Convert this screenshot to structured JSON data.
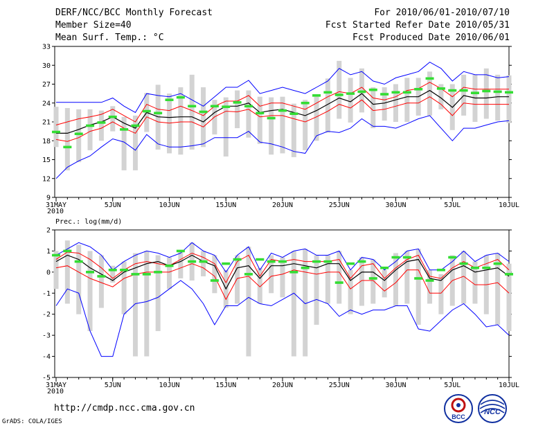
{
  "header": {
    "title": "DERF/NCC/BCC Monthly Forecast",
    "member_size": "Member Size=40",
    "variable1": "Mean Surf. Temp.: °C",
    "period": "For 2010/06/01-2010/07/10",
    "fcst_started": "Fcst Started Refer Date 2010/05/31",
    "fcst_produced": "Fcst Produced Date 2010/06/01"
  },
  "footer": {
    "url": "http://cmdp.ncc.cma.gov.cn",
    "grads": "GrADS: COLA/IGES",
    "logo1_text": "BCC",
    "logo2_text": "NCC"
  },
  "colors": {
    "max_min": "#0000ff",
    "std_band": "#ff0000",
    "mean": "#000000",
    "observed": "#33dd33",
    "spread_bar": "#d3d3d3"
  },
  "chart_data": [
    {
      "type": "line",
      "title": "Mean Surf. Temp.: °C",
      "ylabel": "°C",
      "ylim": [
        9,
        33
      ],
      "yticks": [
        9,
        12,
        15,
        18,
        21,
        24,
        27,
        30,
        33
      ],
      "x": [
        0,
        1,
        2,
        3,
        4,
        5,
        6,
        7,
        8,
        9,
        10,
        11,
        12,
        13,
        14,
        15,
        16,
        17,
        18,
        19,
        20,
        21,
        22,
        23,
        24,
        25,
        26,
        27,
        28,
        29,
        30,
        31,
        32,
        33,
        34,
        35,
        36,
        37,
        38,
        39,
        40
      ],
      "xticks": [
        {
          "day": 0,
          "label": "31MAY",
          "sub": "2010"
        },
        {
          "day": 5,
          "label": "5JUN"
        },
        {
          "day": 10,
          "label": "10JUN"
        },
        {
          "day": 15,
          "label": "15JUN"
        },
        {
          "day": 20,
          "label": "20JUN"
        },
        {
          "day": 25,
          "label": "25JUN"
        },
        {
          "day": 30,
          "label": "30JUN"
        },
        {
          "day": 35,
          "label": "5JUL"
        },
        {
          "day": 40,
          "label": "10JUL"
        }
      ],
      "series": [
        {
          "name": "max",
          "color": "#0000ff",
          "values": [
            24.1,
            24.1,
            24.1,
            24.1,
            24.1,
            24.8,
            23.5,
            22.5,
            25.5,
            25.2,
            25.0,
            25.5,
            24.5,
            23.5,
            25.0,
            26.5,
            26.5,
            27.6,
            25.5,
            26.0,
            26.5,
            26.0,
            25.5,
            26.5,
            27.5,
            29.5,
            28.5,
            29.0,
            27.5,
            27.0,
            28.0,
            28.5,
            29.0,
            30.5,
            29.5,
            27.5,
            29.0,
            28.5,
            28.5,
            28.0,
            28.2
          ]
        },
        {
          "name": "upper_std",
          "color": "#ff0000",
          "values": [
            20.5,
            21.0,
            21.5,
            21.8,
            22.2,
            23.0,
            22.0,
            21.0,
            23.8,
            23.0,
            22.8,
            23.5,
            22.8,
            22.0,
            23.5,
            24.3,
            24.3,
            25.2,
            23.5,
            24.0,
            24.0,
            23.5,
            23.0,
            24.0,
            25.0,
            25.8,
            25.5,
            26.5,
            24.8,
            24.5,
            25.0,
            26.0,
            26.3,
            27.3,
            26.3,
            25.0,
            26.5,
            26.2,
            26.2,
            26.2,
            26.2
          ]
        },
        {
          "name": "mean",
          "color": "#000000",
          "values": [
            19.2,
            19.2,
            19.8,
            20.5,
            21.0,
            21.8,
            20.8,
            20.0,
            22.5,
            21.8,
            21.7,
            21.8,
            21.8,
            21.0,
            22.5,
            23.5,
            23.5,
            24.0,
            22.5,
            22.8,
            23.0,
            22.5,
            22.0,
            22.8,
            23.8,
            24.8,
            24.2,
            25.5,
            23.8,
            24.0,
            24.5,
            25.0,
            25.0,
            26.0,
            24.8,
            23.3,
            25.2,
            24.8,
            24.8,
            25.0,
            25.0
          ]
        },
        {
          "name": "lower_std",
          "color": "#ff0000",
          "values": [
            18.2,
            17.9,
            18.5,
            19.5,
            20.0,
            21.0,
            20.0,
            19.2,
            21.8,
            21.0,
            20.8,
            21.0,
            21.0,
            20.2,
            21.8,
            22.7,
            22.6,
            23.0,
            21.8,
            22.0,
            22.0,
            21.5,
            21.0,
            21.8,
            22.7,
            23.8,
            23.2,
            24.5,
            22.8,
            23.0,
            23.5,
            24.0,
            24.0,
            25.0,
            23.8,
            22.0,
            24.0,
            23.8,
            23.8,
            23.8,
            23.8
          ]
        },
        {
          "name": "min",
          "color": "#0000ff",
          "values": [
            12.0,
            13.8,
            14.8,
            15.6,
            17.0,
            18.3,
            17.8,
            16.5,
            19.0,
            17.5,
            17.0,
            17.0,
            17.2,
            17.5,
            18.5,
            18.5,
            18.5,
            19.5,
            17.8,
            17.5,
            17.0,
            16.3,
            16.0,
            18.8,
            19.5,
            19.3,
            20.0,
            21.5,
            20.3,
            20.3,
            20.0,
            20.7,
            21.5,
            22.0,
            20.0,
            18.0,
            20.0,
            20.0,
            20.5,
            21.0,
            21.2
          ]
        }
      ],
      "spread_bars": [
        [
          17.0,
          23.4
        ],
        [
          13.3,
          23.2
        ],
        [
          14.6,
          23.0
        ],
        [
          16.5,
          23.0
        ],
        [
          18.0,
          22.8
        ],
        [
          19.5,
          23.5
        ],
        [
          13.3,
          21.8
        ],
        [
          13.3,
          22.0
        ],
        [
          19.4,
          25.6
        ],
        [
          16.6,
          26.9
        ],
        [
          16.0,
          25.5
        ],
        [
          15.8,
          26.5
        ],
        [
          16.6,
          28.5
        ],
        [
          17.0,
          26.5
        ],
        [
          19.0,
          24.5
        ],
        [
          15.5,
          24.9
        ],
        [
          20.0,
          26.0
        ],
        [
          18.5,
          26.0
        ],
        [
          17.5,
          25.0
        ],
        [
          15.8,
          24.9
        ],
        [
          16.0,
          25.0
        ],
        [
          15.4,
          23.9
        ],
        [
          16.5,
          24.5
        ],
        [
          18.0,
          25.0
        ],
        [
          19.3,
          27.9
        ],
        [
          21.5,
          30.7
        ],
        [
          20.9,
          28.0
        ],
        [
          22.5,
          29.5
        ],
        [
          20.0,
          26.5
        ],
        [
          21.2,
          26.5
        ],
        [
          21.0,
          27.0
        ],
        [
          21.0,
          28.0
        ],
        [
          22.0,
          28.0
        ],
        [
          22.0,
          29.0
        ],
        [
          23.0,
          27.0
        ],
        [
          19.7,
          27.0
        ],
        [
          22.0,
          28.5
        ],
        [
          21.0,
          28.5
        ],
        [
          21.5,
          29.5
        ],
        [
          21.2,
          28.5
        ],
        [
          20.8,
          28.4
        ]
      ],
      "observed": [
        19.4,
        17.0,
        19.1,
        20.4,
        20.9,
        21.8,
        19.8,
        20.4,
        22.7,
        22.4,
        24.5,
        24.9,
        23.5,
        22.6,
        23.5,
        23.4,
        24.1,
        23.5,
        22.4,
        21.6,
        22.8,
        22.3,
        24.0,
        25.2,
        25.7,
        25.3,
        25.5,
        25.8,
        26.1,
        25.4,
        25.7,
        25.7,
        26.2,
        27.9,
        26.3,
        26.0,
        26.0,
        25.6,
        25.9,
        25.8,
        25.7
      ]
    },
    {
      "type": "line",
      "title": "Prec.: log(mm/d)",
      "ylabel": "log(mm/d)",
      "ylim": [
        -5,
        2
      ],
      "yticks": [
        -5,
        -4,
        -3,
        -2,
        -1,
        0,
        1,
        2
      ],
      "x": [
        0,
        1,
        2,
        3,
        4,
        5,
        6,
        7,
        8,
        9,
        10,
        11,
        12,
        13,
        14,
        15,
        16,
        17,
        18,
        19,
        20,
        21,
        22,
        23,
        24,
        25,
        26,
        27,
        28,
        29,
        30,
        31,
        32,
        33,
        34,
        35,
        36,
        37,
        38,
        39,
        40
      ],
      "xticks": [
        {
          "day": 0,
          "label": "31MAY",
          "sub": "2010"
        },
        {
          "day": 5,
          "label": "5JUN"
        },
        {
          "day": 10,
          "label": "10JUN"
        },
        {
          "day": 15,
          "label": "15JUN"
        },
        {
          "day": 20,
          "label": "20JUN"
        },
        {
          "day": 25,
          "label": "25JUN"
        },
        {
          "day": 30,
          "label": "30JUN"
        },
        {
          "day": 35,
          "label": "5JUL"
        },
        {
          "day": 40,
          "label": "10JUL"
        }
      ],
      "series": [
        {
          "name": "max",
          "color": "#0000ff",
          "values": [
            0.8,
            1.1,
            1.4,
            1.2,
            0.8,
            0.1,
            0.5,
            0.8,
            1.0,
            0.9,
            0.7,
            0.9,
            1.4,
            1.0,
            0.8,
            0.0,
            0.8,
            1.2,
            0.1,
            0.9,
            0.7,
            1.0,
            1.1,
            0.8,
            0.8,
            1.0,
            0.1,
            0.7,
            0.6,
            0.1,
            0.5,
            1.0,
            1.1,
            0.1,
            0.1,
            0.5,
            1.0,
            0.5,
            0.8,
            0.9,
            0.5
          ]
        },
        {
          "name": "upper_std",
          "color": "#ff0000",
          "values": [
            0.6,
            0.95,
            0.9,
            0.6,
            0.2,
            -0.3,
            0.1,
            0.4,
            0.5,
            0.4,
            0.3,
            0.6,
            0.9,
            0.7,
            0.4,
            -0.5,
            0.5,
            0.8,
            -0.2,
            0.6,
            0.5,
            0.6,
            0.5,
            0.5,
            0.5,
            0.6,
            -0.3,
            0.3,
            0.4,
            -0.3,
            0.2,
            0.6,
            0.8,
            -0.2,
            -0.3,
            0.2,
            0.5,
            0.2,
            0.4,
            0.6,
            0.1
          ]
        },
        {
          "name": "mean",
          "color": "#000000",
          "values": [
            0.5,
            0.8,
            0.6,
            0.2,
            -0.1,
            -0.4,
            0.0,
            0.2,
            0.4,
            0.5,
            0.3,
            0.5,
            0.8,
            0.5,
            0.3,
            -0.8,
            0.2,
            0.3,
            -0.3,
            0.3,
            0.3,
            0.4,
            0.3,
            0.2,
            0.4,
            0.4,
            -0.4,
            0.0,
            0.0,
            -0.4,
            0.1,
            0.5,
            0.6,
            -0.3,
            -0.4,
            0.1,
            0.3,
            0.0,
            0.1,
            0.2,
            -0.2
          ]
        },
        {
          "name": "lower_std",
          "color": "#ff0000",
          "values": [
            0.2,
            0.3,
            0.0,
            -0.3,
            -0.5,
            -0.7,
            -0.3,
            -0.1,
            0.0,
            0.0,
            0.0,
            0.2,
            0.4,
            0.2,
            -0.2,
            -1.3,
            -0.3,
            -0.2,
            -0.7,
            -0.2,
            -0.1,
            0.1,
            0.0,
            -0.1,
            0.0,
            0.0,
            -0.8,
            -0.4,
            -0.4,
            -0.9,
            -0.5,
            0.1,
            0.1,
            -1.0,
            -1.0,
            -0.4,
            -0.2,
            -0.6,
            -0.6,
            -0.5,
            -1.0
          ]
        },
        {
          "name": "min",
          "color": "#0000ff",
          "values": [
            -1.6,
            -0.8,
            -1.0,
            -2.8,
            -4.0,
            -4.0,
            -2.0,
            -1.5,
            -1.4,
            -1.2,
            -0.8,
            -0.4,
            -0.8,
            -1.5,
            -2.5,
            -1.6,
            -1.6,
            -1.2,
            -1.5,
            -1.6,
            -1.3,
            -1.0,
            -1.5,
            -1.3,
            -1.5,
            -2.1,
            -1.8,
            -2.0,
            -1.8,
            -1.8,
            -1.6,
            -1.6,
            -2.7,
            -2.8,
            -2.3,
            -1.8,
            -1.5,
            -2.0,
            -2.6,
            -2.5,
            -3.0
          ]
        }
      ],
      "spread_bars": [
        [
          -0.8,
          1.0
        ],
        [
          -1.5,
          1.5
        ],
        [
          -2.0,
          1.3
        ],
        [
          -2.8,
          1.0
        ],
        [
          -1.7,
          0.8
        ],
        [
          -0.5,
          0.3
        ],
        [
          -2.0,
          0.5
        ],
        [
          -4.0,
          0.9
        ],
        [
          -4.0,
          1.0
        ],
        [
          -2.8,
          0.8
        ],
        [
          -0.8,
          0.7
        ],
        [
          -0.3,
          1.0
        ],
        [
          -0.4,
          1.4
        ],
        [
          -0.2,
          1.0
        ],
        [
          -1.0,
          0.8
        ],
        [
          -1.7,
          0.1
        ],
        [
          -1.5,
          0.8
        ],
        [
          -4.0,
          1.2
        ],
        [
          -1.5,
          0.2
        ],
        [
          -1.0,
          0.8
        ],
        [
          -1.2,
          0.7
        ],
        [
          -4.0,
          1.0
        ],
        [
          -4.0,
          1.1
        ],
        [
          -2.5,
          0.8
        ],
        [
          -1.5,
          0.8
        ],
        [
          -1.5,
          1.0
        ],
        [
          -2.0,
          0.1
        ],
        [
          -1.6,
          0.7
        ],
        [
          -1.5,
          0.6
        ],
        [
          -1.2,
          0.1
        ],
        [
          -1.6,
          0.9
        ],
        [
          -1.5,
          1.0
        ],
        [
          -2.5,
          1.1
        ],
        [
          -1.5,
          0.1
        ],
        [
          -2.0,
          -0.1
        ],
        [
          -1.6,
          0.8
        ],
        [
          -1.5,
          1.0
        ],
        [
          -1.5,
          0.5
        ],
        [
          -2.0,
          0.8
        ],
        [
          -2.5,
          0.9
        ],
        [
          -2.8,
          0.4
        ]
      ],
      "observed": [
        0.8,
        1.0,
        0.5,
        0.0,
        -0.2,
        0.1,
        0.1,
        -0.1,
        -0.1,
        0.0,
        0.3,
        1.0,
        0.5,
        0.5,
        -0.4,
        0.4,
        0.6,
        -0.1,
        0.6,
        0.5,
        0.5,
        0.0,
        0.2,
        0.5,
        0.5,
        -0.5,
        0.4,
        0.5,
        -0.3,
        0.2,
        0.7,
        0.7,
        -0.3,
        -0.4,
        0.1,
        0.7,
        0.4,
        0.2,
        0.2,
        0.4,
        -0.1
      ]
    }
  ]
}
